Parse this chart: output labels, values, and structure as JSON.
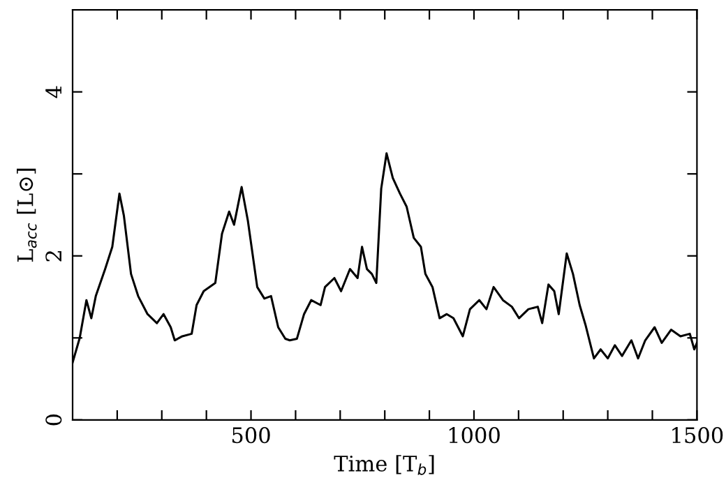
{
  "chart_data": {
    "type": "line",
    "xlabel": "Time [T$_{b}$]",
    "ylabel": "L$_{acc}$ [L⊙]",
    "xlim": [
      100,
      1500
    ],
    "ylim": [
      0,
      5
    ],
    "xticks": [
      {
        "value": 200,
        "label": null
      },
      {
        "value": 300,
        "label": null
      },
      {
        "value": 400,
        "label": null
      },
      500,
      {
        "value": 600,
        "label": null
      },
      {
        "value": 700,
        "label": null
      },
      {
        "value": 800,
        "label": null
      },
      {
        "value": 900,
        "label": null
      },
      1000,
      {
        "value": 1100,
        "label": null
      },
      {
        "value": 1200,
        "label": null
      },
      {
        "value": 1300,
        "label": null
      },
      {
        "value": 1400,
        "label": null
      },
      1500
    ],
    "yticks": [
      0,
      {
        "value": 1,
        "label": null
      },
      2,
      {
        "value": 3,
        "label": null
      },
      4
    ],
    "grid": false,
    "marker": "none",
    "line_style": "solid",
    "series": [
      {
        "color": "#000000",
        "x": [
          100,
          116,
          131,
          142,
          152,
          173,
          189,
          205,
          215,
          231,
          247,
          268,
          289,
          304,
          320,
          329,
          346,
          367,
          378,
          394,
          420,
          435,
          451,
          462,
          479,
          493,
          514,
          530,
          545,
          561,
          577,
          587,
          603,
          619,
          635,
          656,
          666,
          687,
          702,
          722,
          739,
          749,
          760,
          771,
          781,
          792,
          804,
          818,
          834,
          849,
          865,
          881,
          891,
          907,
          923,
          939,
          954,
          975,
          991,
          1012,
          1028,
          1044,
          1065,
          1085,
          1101,
          1122,
          1143,
          1153,
          1167,
          1180,
          1190,
          1208,
          1222,
          1237,
          1250,
          1269,
          1284,
          1300,
          1316,
          1332,
          1353,
          1368,
          1384,
          1405,
          1421,
          1442,
          1463,
          1484,
          1494,
          1500
        ],
        "values": [
          0.7,
          1.0,
          1.46,
          1.24,
          1.51,
          1.84,
          2.11,
          2.76,
          2.49,
          1.78,
          1.51,
          1.29,
          1.18,
          1.29,
          1.13,
          0.97,
          1.02,
          1.05,
          1.4,
          1.57,
          1.67,
          2.27,
          2.54,
          2.38,
          2.84,
          2.43,
          1.62,
          1.48,
          1.51,
          1.13,
          0.99,
          0.97,
          0.99,
          1.29,
          1.46,
          1.4,
          1.62,
          1.73,
          1.57,
          1.84,
          1.73,
          2.11,
          1.84,
          1.78,
          1.67,
          2.82,
          3.25,
          2.95,
          2.76,
          2.6,
          2.22,
          2.11,
          1.78,
          1.62,
          1.24,
          1.29,
          1.24,
          1.02,
          1.35,
          1.46,
          1.35,
          1.62,
          1.46,
          1.38,
          1.24,
          1.35,
          1.38,
          1.18,
          1.65,
          1.57,
          1.29,
          2.03,
          1.78,
          1.4,
          1.16,
          0.75,
          0.86,
          0.75,
          0.91,
          0.78,
          0.97,
          0.75,
          0.97,
          1.13,
          0.94,
          1.1,
          1.02,
          1.05,
          0.86,
          0.94
        ]
      }
    ]
  }
}
